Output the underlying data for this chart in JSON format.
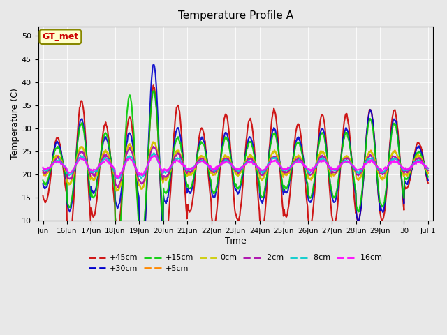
{
  "title": "Temperature Profile A",
  "xlabel": "Time",
  "ylabel": "Temperature (C)",
  "ylim": [
    10,
    52
  ],
  "yticks": [
    10,
    15,
    20,
    25,
    30,
    35,
    40,
    45,
    50
  ],
  "bg_color": "#e8e8e8",
  "tick_labels": [
    "Jun",
    "16Jun",
    "17Jun",
    "18Jun",
    "19Jun",
    "20Jun",
    "21Jun",
    "22Jun",
    "23Jun",
    "24Jun",
    "25Jun",
    "26Jun",
    "27Jun",
    "28Jun",
    "29Jun",
    "30",
    "Jul 1"
  ],
  "series": [
    {
      "label": "+45cm",
      "color": "#cc0000",
      "lw": 1.5
    },
    {
      "label": "+30cm",
      "color": "#0000cc",
      "lw": 1.5
    },
    {
      "label": "+15cm",
      "color": "#00cc00",
      "lw": 1.5
    },
    {
      "label": "+5cm",
      "color": "#ff8800",
      "lw": 1.5
    },
    {
      "label": "0cm",
      "color": "#cccc00",
      "lw": 1.5
    },
    {
      "label": "-2cm",
      "color": "#aa00aa",
      "lw": 1.5
    },
    {
      "label": "-8cm",
      "color": "#00cccc",
      "lw": 1.5
    },
    {
      "label": "-16cm",
      "color": "#ff00ff",
      "lw": 1.5
    }
  ],
  "annotation_text": "GT_met",
  "annotation_color": "#cc0000",
  "annotation_bg": "#ffffcc",
  "annotation_border": "#888800",
  "base_45": [
    21,
    21,
    21,
    20.5,
    21,
    21,
    21,
    21,
    21,
    21,
    21,
    21,
    21,
    22,
    22,
    22
  ],
  "amp_45": [
    7,
    15,
    10,
    12,
    18,
    14,
    9,
    12,
    11,
    13,
    10,
    12,
    12,
    12,
    12,
    5
  ],
  "base_30": [
    22,
    22,
    22,
    21,
    22,
    22,
    22,
    22,
    22,
    22,
    22,
    22,
    22,
    22,
    22,
    22
  ],
  "amp_30": [
    5,
    10,
    6,
    8,
    22,
    8,
    6,
    7,
    6,
    8,
    6,
    8,
    8,
    12,
    10,
    4
  ],
  "base_15": [
    22,
    22,
    22,
    21,
    22,
    22,
    22,
    22,
    22,
    22,
    22,
    22,
    22,
    22,
    22,
    22
  ],
  "amp_15": [
    4,
    9,
    7,
    16,
    16,
    6,
    5,
    6,
    5,
    7,
    5,
    7,
    7,
    10,
    9,
    3
  ],
  "base_5": [
    22,
    22,
    22,
    21.5,
    22,
    22,
    22,
    22,
    22,
    22,
    22,
    22,
    22,
    22,
    22,
    22
  ],
  "amp_5": [
    2,
    4,
    3,
    5,
    5,
    3,
    2,
    2,
    2,
    3,
    2,
    3,
    2,
    3,
    3,
    2
  ],
  "base_0": [
    22,
    22,
    22,
    21.5,
    22,
    22,
    22,
    22,
    22,
    22,
    22,
    22,
    22,
    22,
    22,
    22
  ],
  "amp_0": [
    2,
    4,
    3,
    5,
    5,
    3,
    2,
    2,
    2,
    3,
    2,
    3,
    2,
    3,
    3,
    2
  ],
  "base_m2": [
    22,
    22,
    22,
    21.5,
    22,
    22,
    22,
    22,
    22,
    22,
    22,
    22,
    22,
    22,
    22,
    22
  ],
  "amp_m2": [
    1.5,
    3,
    2,
    4,
    4,
    2.5,
    1.5,
    1.5,
    1.5,
    2,
    1.5,
    2,
    1.5,
    2,
    2,
    1.5
  ],
  "base_m8": [
    22,
    22,
    22,
    21.5,
    22,
    22,
    22,
    22,
    22,
    22,
    22,
    22,
    22,
    22,
    22,
    22
  ],
  "amp_m8": [
    1,
    2,
    1.5,
    2.5,
    2.5,
    1.5,
    1,
    1,
    1,
    1.5,
    1,
    1.5,
    1,
    1.5,
    1.5,
    1
  ],
  "base_m16": [
    22,
    22,
    22,
    21.5,
    22,
    22,
    22,
    22,
    22,
    22,
    22,
    22,
    22,
    22,
    22,
    22
  ],
  "amp_m16": [
    0.8,
    1.5,
    1,
    2,
    2,
    1,
    0.8,
    0.8,
    0.8,
    1,
    0.8,
    1,
    0.8,
    1,
    1,
    0.8
  ]
}
